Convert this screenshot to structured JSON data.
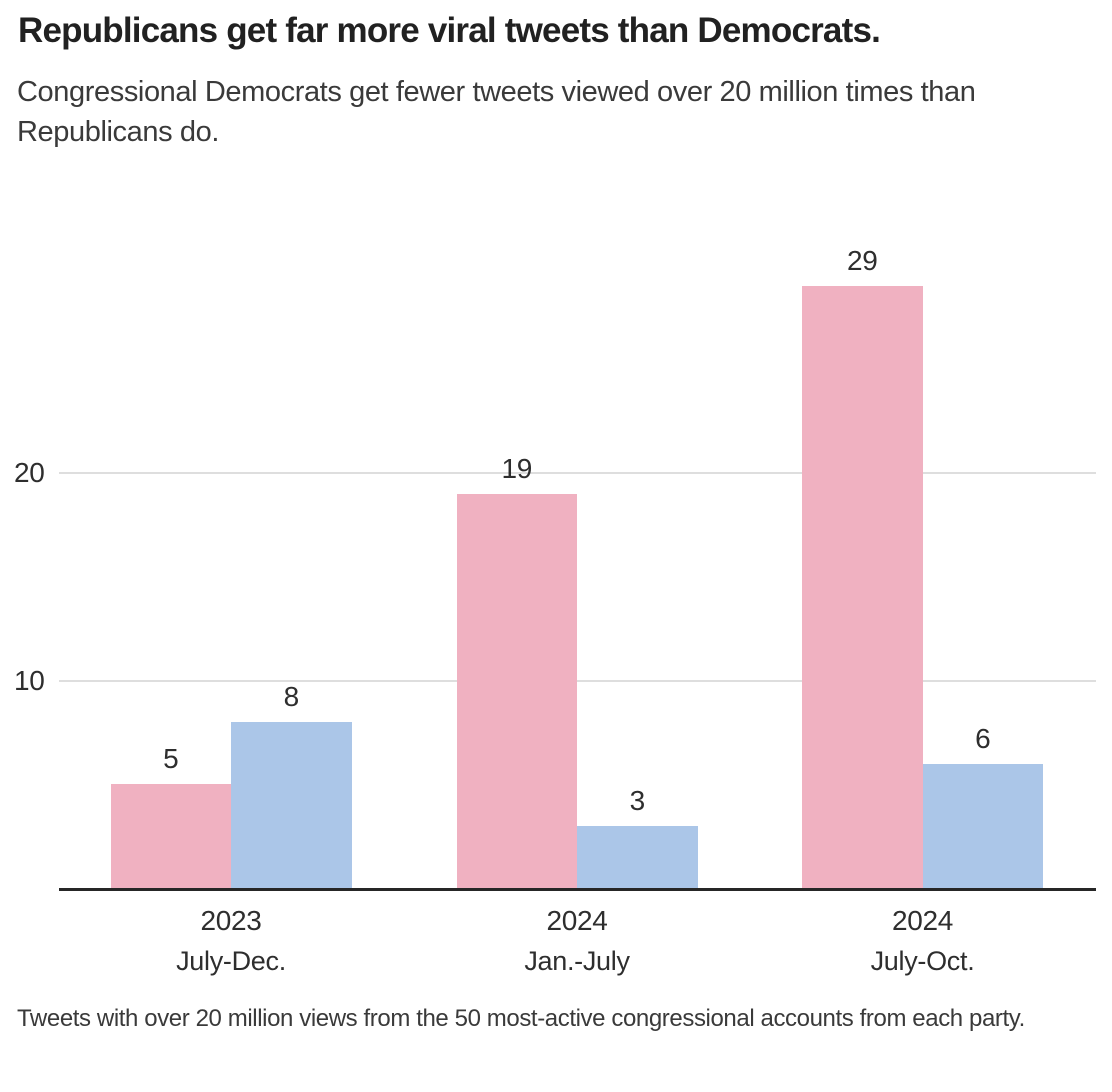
{
  "chart_data": {
    "type": "bar",
    "title": "Republicans get far more viral tweets than Democrats.",
    "subtitle": "Congressional Democrats get fewer tweets viewed over 20 million times than Republicans do.",
    "note": "Tweets with over 20 million views from the 50 most-active congressional accounts from each party.",
    "categories": [
      {
        "year": "2023",
        "period": "July-Dec."
      },
      {
        "year": "2024",
        "period": "Jan.-July"
      },
      {
        "year": "2024",
        "period": "July-Oct."
      }
    ],
    "series": [
      {
        "name": "Republicans",
        "color_key": "republican_pink",
        "values": [
          5,
          19,
          29
        ]
      },
      {
        "name": "Democrats",
        "color_key": "democrat_blue",
        "values": [
          8,
          3,
          6
        ]
      }
    ],
    "yticks": [
      10,
      20
    ],
    "ylim": [
      0,
      30
    ],
    "grid": true,
    "legend": "none",
    "bar_value_labels": true
  },
  "colors": {
    "republican_pink": "#F0B1C1",
    "democrat_blue": "#ABC6E8",
    "gridline": "#DEDEDE",
    "axis_line": "#262626",
    "title_text": "#212121",
    "subtitle_text": "#3A3A3A",
    "label_text": "#2E2E2E",
    "footnote_text": "#3A3A3A"
  }
}
